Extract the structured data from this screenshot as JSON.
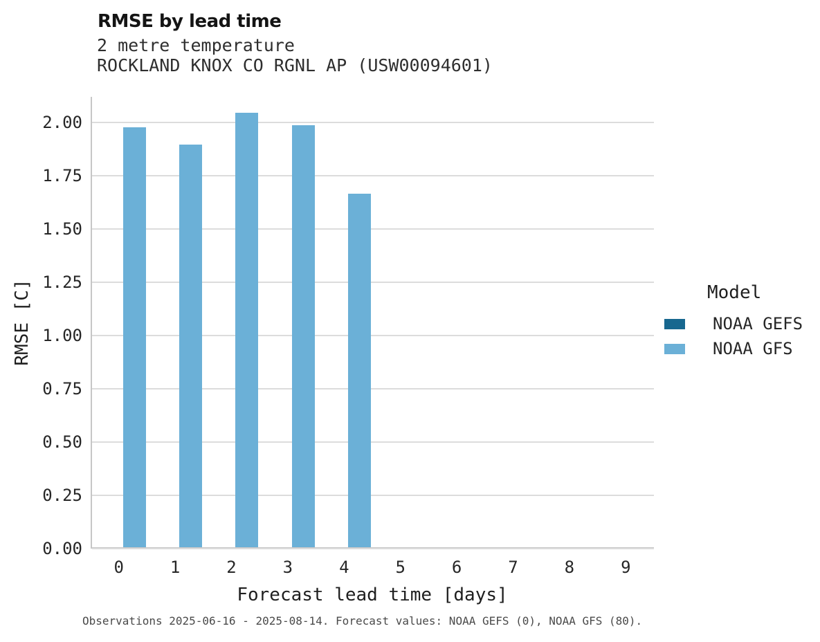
{
  "chart_data": {
    "type": "bar",
    "title": "RMSE by lead time",
    "subtitle_variable": "2 metre temperature",
    "subtitle_station": "ROCKLAND KNOX CO RGNL AP (USW00094601)",
    "xlabel": "Forecast lead time [days]",
    "ylabel": "RMSE [C]",
    "categories": [
      0,
      1,
      2,
      3,
      4,
      5,
      6,
      7,
      8,
      9
    ],
    "series": [
      {
        "name": "NOAA GEFS",
        "color": "#17678f",
        "values": [
          null,
          null,
          null,
          null,
          null,
          null,
          null,
          null,
          null,
          null
        ]
      },
      {
        "name": "NOAA GFS",
        "color": "#6bb0d7",
        "values": [
          1.97,
          1.89,
          2.04,
          1.98,
          1.66,
          null,
          null,
          null,
          null,
          null
        ]
      }
    ],
    "yticks": [
      0.0,
      0.25,
      0.5,
      0.75,
      1.0,
      1.25,
      1.5,
      1.75,
      2.0
    ],
    "ylim": [
      0,
      2.12
    ],
    "grid": "horizontal",
    "legend_title": "Model",
    "legend_position": "right",
    "footnote": "Observations 2025-06-16 - 2025-08-14. Forecast values: NOAA GEFS (0), NOAA GFS (80)."
  },
  "colors": {
    "gridline": "#dcdcdc",
    "axis": "#c6c6c6",
    "background": "#ffffff"
  }
}
